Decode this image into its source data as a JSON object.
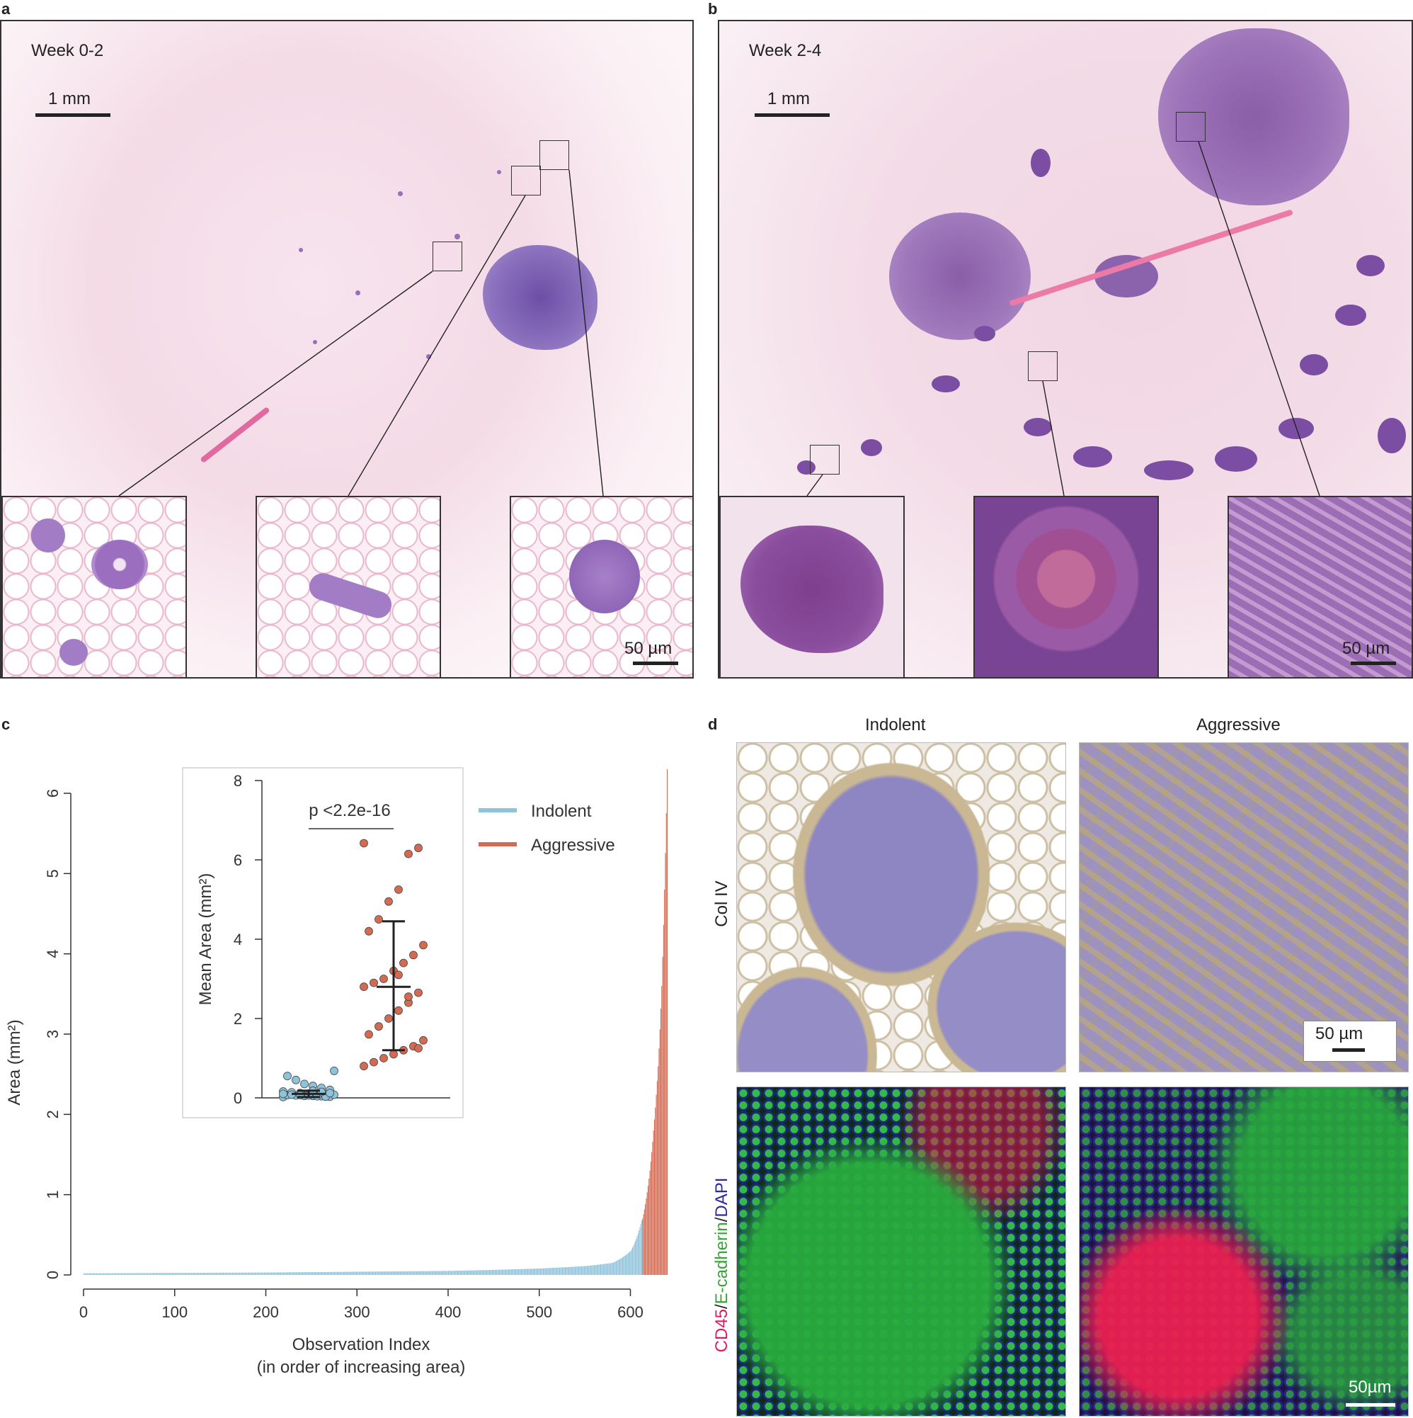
{
  "panels": {
    "a": {
      "letter": "a",
      "week": "Week 0-2",
      "scale_main": "1 mm",
      "scale_inset": "50 µm"
    },
    "b": {
      "letter": "b",
      "week": "Week 2-4",
      "scale_main": "1 mm",
      "scale_inset": "50 µm"
    },
    "c": {
      "letter": "c"
    },
    "d": {
      "letter": "d",
      "col_indolent": "Indolent",
      "col_aggressive": "Aggressive",
      "row_col4": "Col IV",
      "row_if_cd45": "CD45",
      "row_if_sep1": "/",
      "row_if_ecad": "E-cadherin",
      "row_if_sep2": "/",
      "row_if_dapi": "DAPI",
      "scale_ihc": "50 µm",
      "scale_if": "50µm"
    }
  },
  "colors": {
    "indolent": "#8ec3dc",
    "aggressive": "#d46a52",
    "cd45": "#e0195a",
    "ecad": "#3aa23a",
    "dapi": "#2a2aa0"
  },
  "chart_data": [
    {
      "type": "bar",
      "ylabel": "Area (mm²)",
      "xlabel": "Observation Index",
      "xlabel_sub": "(in order of increasing area)",
      "xlim": [
        0,
        640
      ],
      "ylim": [
        0,
        6
      ],
      "xticks": [
        0,
        100,
        200,
        300,
        400,
        500,
        600
      ],
      "yticks": [
        0,
        1,
        2,
        3,
        4,
        5,
        6
      ],
      "legend": {
        "position": "top-right",
        "entries": [
          {
            "name": "Indolent",
            "color": "#8ec3dc"
          },
          {
            "name": "Aggressive",
            "color": "#d46a52"
          }
        ]
      },
      "series": [
        {
          "name": "Indolent",
          "x_range": [
            0,
            612
          ],
          "curve_points": [
            [
              0,
              0.02
            ],
            [
              100,
              0.025
            ],
            [
              200,
              0.03
            ],
            [
              300,
              0.04
            ],
            [
              400,
              0.05
            ],
            [
              500,
              0.08
            ],
            [
              550,
              0.11
            ],
            [
              580,
              0.15
            ],
            [
              600,
              0.3
            ],
            [
              612,
              0.68
            ]
          ]
        },
        {
          "name": "Aggressive",
          "x_range": [
            613,
            640
          ],
          "curve_points": [
            [
              613,
              0.7
            ],
            [
              620,
              1.2
            ],
            [
              625,
              1.8
            ],
            [
              630,
              2.6
            ],
            [
              634,
              3.6
            ],
            [
              637,
              4.8
            ],
            [
              640,
              6.3
            ]
          ]
        }
      ]
    },
    {
      "type": "scatter",
      "ylabel": "Mean Area (mm²)",
      "ylim": [
        0,
        8
      ],
      "yticks": [
        0,
        2,
        4,
        6,
        8
      ],
      "annotation": "p <2.2e-16",
      "groups": [
        {
          "name": "Indolent",
          "mean": 0.1,
          "sd_low": 0.02,
          "sd_high": 0.18,
          "points": [
            0.02,
            0.03,
            0.04,
            0.05,
            0.05,
            0.06,
            0.07,
            0.08,
            0.09,
            0.1,
            0.11,
            0.12,
            0.14,
            0.16,
            0.2,
            0.25,
            0.3,
            0.35,
            0.45,
            0.55,
            0.68,
            0.03,
            0.04,
            0.06,
            0.07,
            0.08,
            0.1,
            0.12,
            0.15,
            0.18
          ]
        },
        {
          "name": "Aggressive",
          "mean": 2.8,
          "sd_low": 1.2,
          "sd_high": 4.45,
          "points": [
            6.42,
            6.3,
            6.15,
            5.25,
            4.95,
            4.5,
            4.2,
            3.85,
            3.6,
            3.4,
            3.2,
            3.0,
            2.9,
            2.8,
            2.65,
            2.4,
            2.2,
            2.0,
            1.8,
            1.6,
            1.45,
            1.3,
            1.2,
            1.1,
            1.0,
            0.9,
            0.8,
            1.25,
            2.55,
            3.1
          ]
        }
      ]
    }
  ]
}
